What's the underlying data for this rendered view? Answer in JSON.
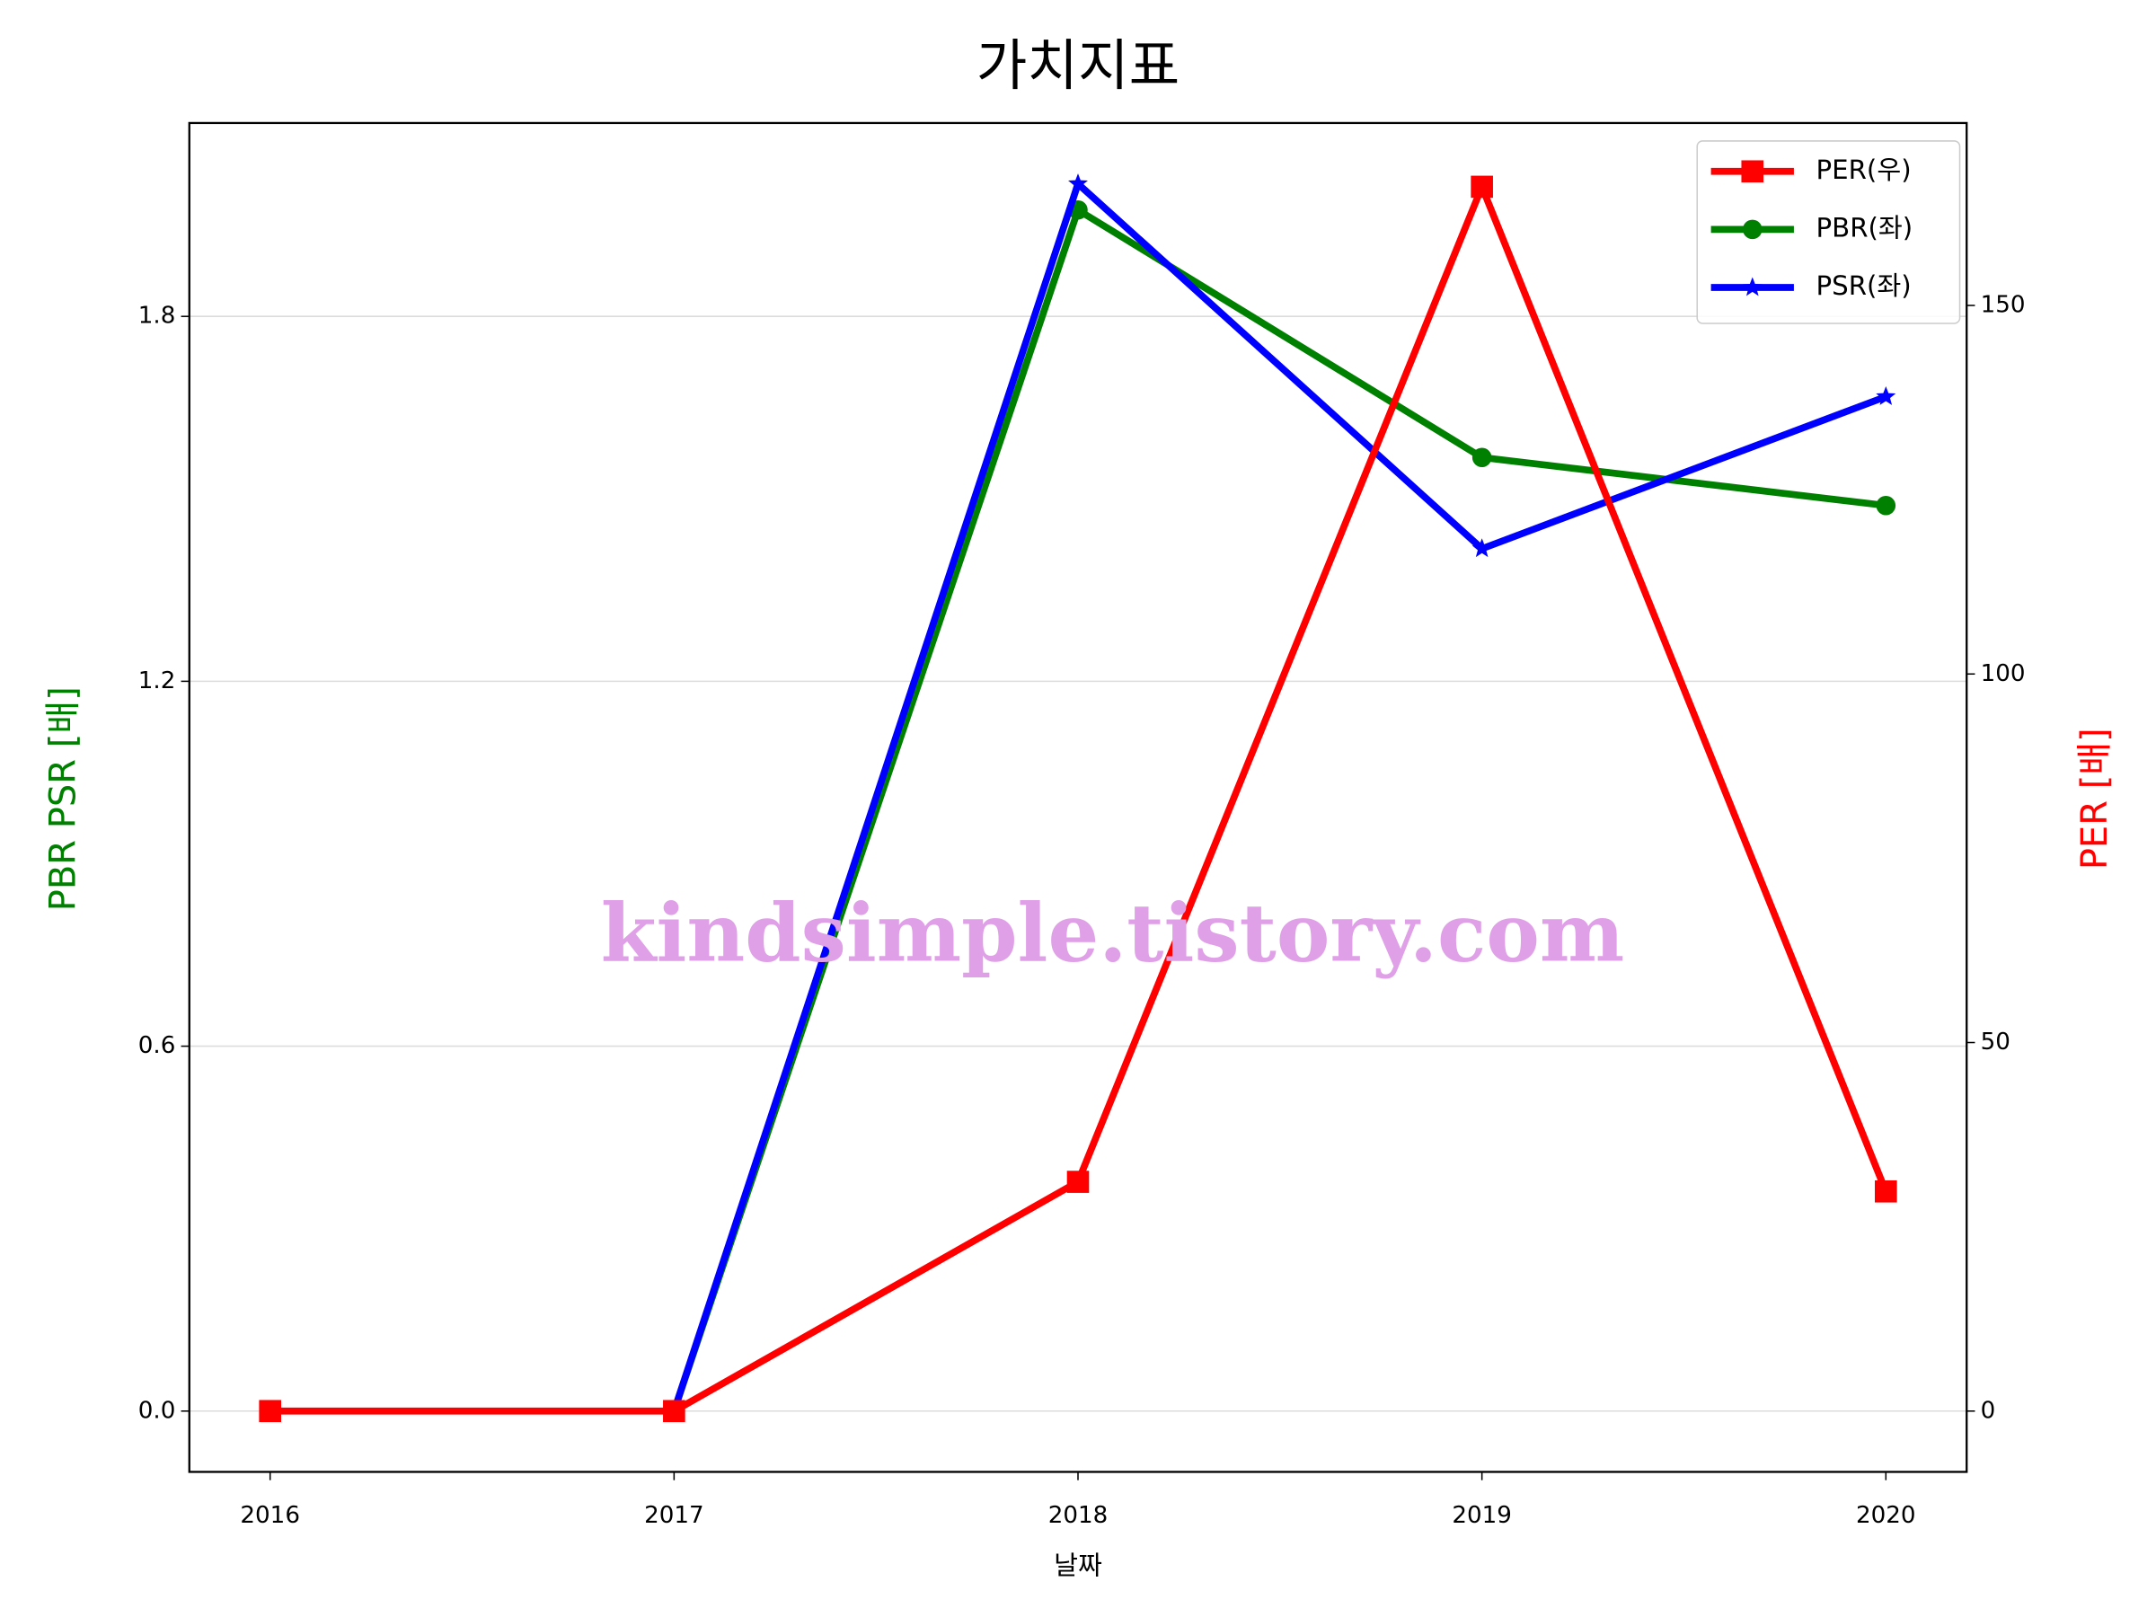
{
  "chart_data": {
    "type": "line",
    "title": "가치지표",
    "xlabel": "날짜",
    "ylabel": "PBR PSR [배]",
    "y2label": "PER [배]",
    "ylabel_color": "green",
    "y2label_color": "red",
    "x": [
      2016,
      2017,
      2018,
      2019,
      2020
    ],
    "xlim": [
      2015.8,
      2020.2
    ],
    "xticks": [
      2016,
      2017,
      2018,
      2019,
      2020
    ],
    "ylim": [
      -0.1,
      2.118
    ],
    "yticks": [
      {
        "value": 0,
        "label": "0.0"
      },
      0.6,
      1.2,
      1.8
    ],
    "y2lim": [
      -8.25,
      174.75
    ],
    "y2ticks": [
      0,
      50,
      100,
      150
    ],
    "grid": true,
    "legend": "upper right",
    "annotation": "kindsimple.tistory.com",
    "series": [
      {
        "name": "PER(우)",
        "color": "red",
        "marker": "square",
        "axis": "y2",
        "values": [
          0,
          0,
          31.1,
          166.1,
          29.8
        ]
      },
      {
        "name": "PBR(좌)",
        "color": "green",
        "marker": "circle",
        "values": [
          null,
          0,
          1.975,
          1.568,
          1.489
        ]
      },
      {
        "name": "PSR(좌)",
        "color": "blue",
        "marker": "star",
        "values": [
          null,
          0,
          2.018,
          1.418,
          1.668
        ]
      }
    ]
  }
}
